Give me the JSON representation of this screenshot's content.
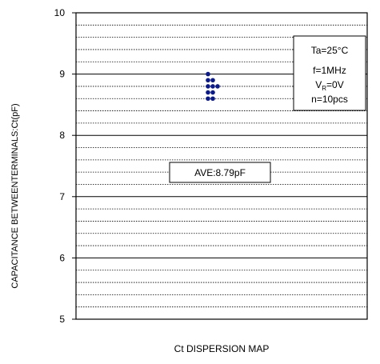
{
  "chart_data": {
    "type": "scatter",
    "title": "",
    "xlabel": "Ct DISPERSION MAP",
    "ylabel": "CAPACITANCE BETWEENTERMINALS:Ct(pF)",
    "ylim": [
      5,
      10
    ],
    "yticks": [
      "5",
      "6",
      "7",
      "8",
      "9",
      "10"
    ],
    "grid": true,
    "minor_grid_step": 0.2,
    "x": [
      1,
      1,
      1,
      1,
      1,
      2,
      2,
      2,
      2,
      3
    ],
    "y": [
      9.0,
      8.9,
      8.8,
      8.7,
      8.6,
      8.9,
      8.8,
      8.7,
      8.6,
      8.8
    ],
    "marker_color": "#0a1a8c",
    "conditions": {
      "line1": "Ta=25°C",
      "line2": "f=1MHz",
      "line3_main": "V",
      "line3_sub": "R",
      "line3_rest": "=0V",
      "line4": "n=10pcs"
    },
    "average_label": "AVE:8.79pF"
  }
}
